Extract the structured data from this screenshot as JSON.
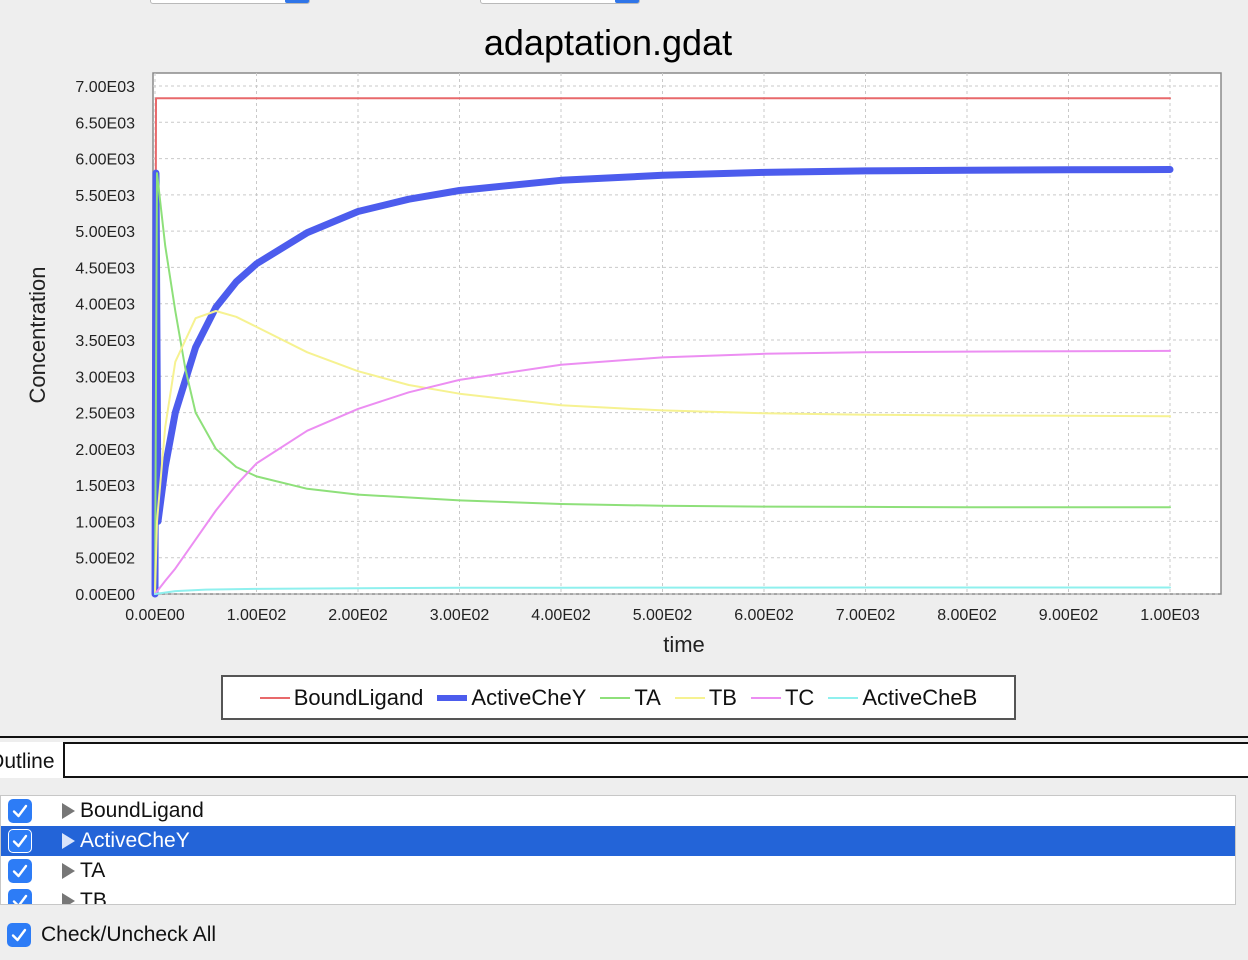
{
  "window": {
    "top_controls": [
      "",
      ""
    ]
  },
  "chart_data": {
    "type": "line",
    "title": "adaptation.gdat",
    "xlabel": "time",
    "ylabel": "Concentration",
    "xlim": [
      0,
      1000
    ],
    "ylim": [
      0,
      7000
    ],
    "x_ticks": [
      "0.00E00",
      "1.00E02",
      "2.00E02",
      "3.00E02",
      "4.00E02",
      "5.00E02",
      "6.00E02",
      "7.00E02",
      "8.00E02",
      "9.00E02",
      "1.00E03"
    ],
    "y_ticks": [
      "0.00E00",
      "5.00E02",
      "1.00E03",
      "1.50E03",
      "2.00E03",
      "2.50E03",
      "3.00E03",
      "3.50E03",
      "4.00E03",
      "4.50E03",
      "5.00E03",
      "5.50E03",
      "6.00E03",
      "6.50E03",
      "7.00E03"
    ],
    "grid": true,
    "legend_position": "bottom",
    "series": [
      {
        "name": "BoundLigand",
        "color": "#e8696b",
        "emphasis": "normal",
        "x": [
          0,
          1,
          5,
          100,
          200,
          300,
          400,
          500,
          600,
          700,
          800,
          900,
          1000
        ],
        "y": [
          0,
          6830,
          6830,
          6830,
          6830,
          6830,
          6830,
          6830,
          6830,
          6830,
          6830,
          6830,
          6830
        ]
      },
      {
        "name": "ActiveCheY",
        "color": "#4c5ced",
        "emphasis": "bold",
        "x": [
          0,
          1,
          3,
          10,
          20,
          40,
          60,
          80,
          100,
          150,
          200,
          250,
          300,
          400,
          500,
          600,
          700,
          800,
          900,
          1000
        ],
        "y": [
          0,
          5800,
          1000,
          1750,
          2500,
          3400,
          3950,
          4300,
          4550,
          4980,
          5270,
          5440,
          5560,
          5700,
          5770,
          5810,
          5830,
          5840,
          5845,
          5850
        ]
      },
      {
        "name": "TA",
        "color": "#8ee07a",
        "emphasis": "normal",
        "x": [
          0,
          2,
          10,
          20,
          30,
          40,
          60,
          80,
          100,
          150,
          200,
          300,
          400,
          500,
          600,
          700,
          800,
          900,
          1000
        ],
        "y": [
          0,
          5800,
          4800,
          3900,
          3100,
          2500,
          2000,
          1750,
          1620,
          1450,
          1370,
          1290,
          1240,
          1215,
          1205,
          1200,
          1195,
          1195,
          1195
        ]
      },
      {
        "name": "TB",
        "color": "#f6f291",
        "emphasis": "normal",
        "x": [
          0,
          2,
          10,
          20,
          40,
          60,
          80,
          100,
          150,
          200,
          250,
          300,
          400,
          500,
          600,
          700,
          800,
          900,
          1000
        ],
        "y": [
          0,
          1000,
          2300,
          3200,
          3800,
          3900,
          3820,
          3680,
          3330,
          3070,
          2880,
          2760,
          2600,
          2530,
          2490,
          2470,
          2460,
          2455,
          2450
        ]
      },
      {
        "name": "TC",
        "color": "#ec8ef2",
        "emphasis": "normal",
        "x": [
          0,
          10,
          20,
          40,
          60,
          80,
          100,
          150,
          200,
          250,
          300,
          400,
          500,
          600,
          700,
          800,
          900,
          1000
        ],
        "y": [
          0,
          180,
          350,
          750,
          1150,
          1500,
          1800,
          2250,
          2550,
          2780,
          2950,
          3160,
          3260,
          3310,
          3330,
          3340,
          3345,
          3350
        ]
      },
      {
        "name": "ActiveCheB",
        "color": "#8ff0ee",
        "emphasis": "normal",
        "x": [
          0,
          20,
          50,
          100,
          200,
          300,
          400,
          500,
          600,
          700,
          800,
          900,
          1000
        ],
        "y": [
          0,
          40,
          60,
          70,
          80,
          85,
          85,
          88,
          88,
          90,
          90,
          90,
          90
        ]
      }
    ]
  },
  "outline": {
    "tab_label": "Outline",
    "items": [
      {
        "label": "BoundLigand",
        "checked": true,
        "selected": false
      },
      {
        "label": "ActiveCheY",
        "checked": true,
        "selected": true
      },
      {
        "label": "TA",
        "checked": true,
        "selected": false
      },
      {
        "label": "TB",
        "checked": true,
        "selected": false
      }
    ],
    "check_all_label": "Check/Uncheck All"
  }
}
